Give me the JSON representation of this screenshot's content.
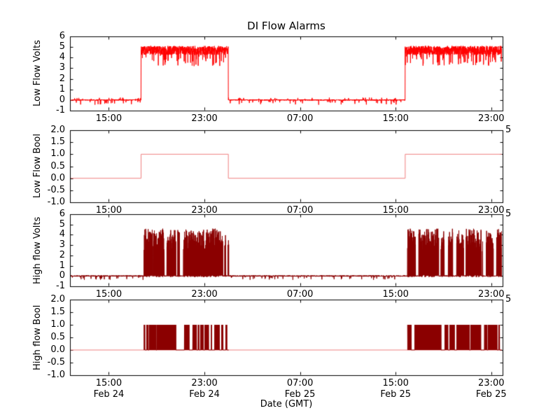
{
  "figure": {
    "bg_color": "#ffffff",
    "axis_color": "#000000"
  },
  "chart_data": {
    "type": "line",
    "title": "DI Flow Alarms",
    "xlabel": "Date (GMT)",
    "x_range_hours": [
      11.75,
      47.95
    ],
    "x_ticks": [
      {
        "hour": 15,
        "time": "15:00",
        "date": "Feb 24"
      },
      {
        "hour": 23,
        "time": "23:00",
        "date": "Feb 24"
      },
      {
        "hour": 31,
        "time": "07:00",
        "date": "Feb 25"
      },
      {
        "hour": 39,
        "time": "15:00",
        "date": "Feb 25"
      },
      {
        "hour": 47,
        "time": "23:00",
        "date": "Feb 25"
      }
    ],
    "subplots": [
      {
        "ylabel": "Low Flow Volts",
        "ylim": [
          -1,
          6
        ],
        "ytick_values": [
          -1,
          0,
          1,
          2,
          3,
          4,
          5,
          6
        ],
        "ytick_labels": [
          "-1",
          "0",
          "1",
          "2",
          "3",
          "4",
          "5",
          "6"
        ],
        "color": "#ff0000",
        "signal": "noisy_volts",
        "inactive_level_volts": 0,
        "active_level_range_volts": [
          4.2,
          5.1
        ],
        "active_windows_hours": [
          [
            17.7,
            25.0
          ],
          [
            39.8,
            47.95
          ]
        ],
        "right_corner_label": ""
      },
      {
        "ylabel": "Low Flow Bool",
        "ylim": [
          -1,
          2
        ],
        "ytick_values": [
          -1,
          -0.5,
          0,
          0.5,
          1,
          1.5,
          2
        ],
        "ytick_labels": [
          "-1.0",
          "-0.5",
          "0.0",
          "0.5",
          "1.0",
          "1.5",
          "2.0"
        ],
        "color": "#f08080",
        "signal": "bool_step",
        "levels": [
          0,
          1
        ],
        "active_windows_hours": [
          [
            17.7,
            25.0
          ],
          [
            39.8,
            47.95
          ]
        ],
        "right_corner_label": "5"
      },
      {
        "ylabel": "High flow Volts",
        "ylim": [
          -1,
          6
        ],
        "ytick_values": [
          -1,
          0,
          1,
          2,
          3,
          4,
          5,
          6
        ],
        "ytick_labels": [
          "-1",
          "0",
          "1",
          "2",
          "3",
          "4",
          "5",
          "6"
        ],
        "color": "#8b0000",
        "signal": "burst_volts",
        "inactive_level_volts": 0,
        "active_peak_range_volts": [
          2.3,
          4.6
        ],
        "active_windows_hours": [
          [
            17.95,
            25.05
          ],
          [
            40.0,
            47.95
          ]
        ],
        "right_corner_label": "5"
      },
      {
        "ylabel": "High flow Bool",
        "ylim": [
          -1,
          2
        ],
        "ytick_values": [
          -1,
          -0.5,
          0,
          0.5,
          1,
          1.5,
          2
        ],
        "ytick_labels": [
          "-1.0",
          "-0.5",
          "0.0",
          "0.5",
          "1.0",
          "1.5",
          "2.0"
        ],
        "color": "#8b0000",
        "baseline_color": "#f08080",
        "signal": "burst_bool",
        "levels": [
          0,
          1
        ],
        "active_windows_hours": [
          [
            17.95,
            25.05
          ],
          [
            40.0,
            47.95
          ]
        ],
        "right_corner_label": "5"
      }
    ]
  }
}
